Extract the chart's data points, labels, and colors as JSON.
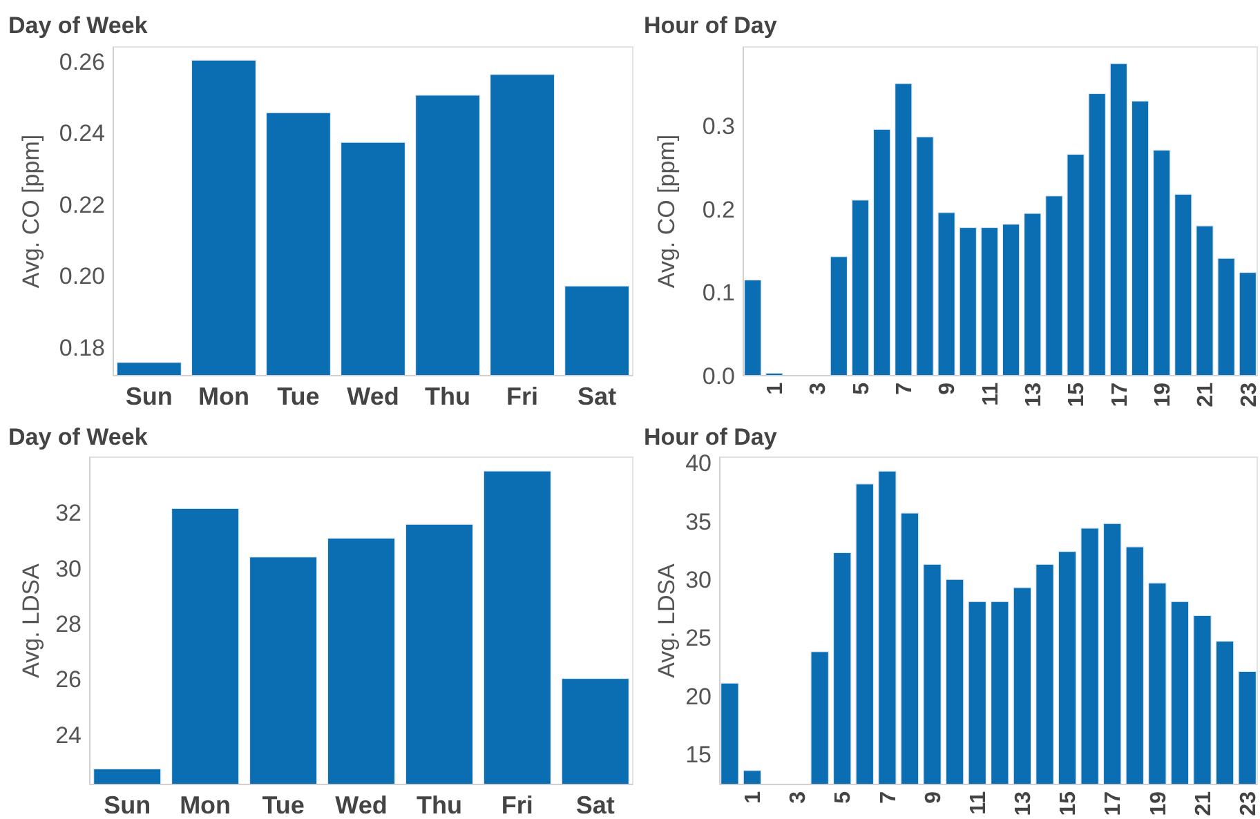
{
  "chart_data": [
    {
      "type": "bar",
      "title": "Day of Week",
      "ylabel": "Avg. CO [ppm]",
      "categories": [
        "Sun",
        "Mon",
        "Tue",
        "Wed",
        "Thu",
        "Fri",
        "Sat"
      ],
      "color": "#0b6db2",
      "values": [
        0.1757,
        0.2603,
        0.2456,
        0.2373,
        0.2505,
        0.2563,
        0.1971
      ],
      "ylim": [
        0.172,
        0.264
      ],
      "yticks": [
        {
          "value": 0.18,
          "label": "0.18"
        },
        {
          "value": 0.2,
          "label": "0.20"
        },
        {
          "value": 0.22,
          "label": "0.22"
        },
        {
          "value": 0.24,
          "label": "0.24"
        },
        {
          "value": 0.26,
          "label": "0.26"
        }
      ],
      "grid": false
    },
    {
      "type": "bar",
      "title": "Hour of Day",
      "ylabel": "Avg. CO [ppm]",
      "categories": [
        null,
        "1",
        null,
        "3",
        null,
        "5",
        null,
        "7",
        null,
        "9",
        null,
        "11",
        null,
        "13",
        null,
        "15",
        null,
        "17",
        null,
        "19",
        null,
        "21",
        null,
        "23"
      ],
      "color": "#0b6db2",
      "values": [
        0.115,
        0.003,
        null,
        null,
        0.143,
        0.211,
        0.296,
        0.351,
        0.287,
        0.196,
        0.178,
        0.178,
        0.182,
        0.195,
        0.216,
        0.266,
        0.339,
        0.375,
        0.33,
        0.271,
        0.218,
        0.18,
        0.141,
        0.124
      ],
      "ylim": [
        0,
        0.395
      ],
      "yticks": [
        {
          "value": 0,
          "label": "0.0"
        },
        {
          "value": 0.1,
          "label": "0.1"
        },
        {
          "value": 0.2,
          "label": "0.2"
        },
        {
          "value": 0.3,
          "label": "0.3"
        }
      ],
      "grid": false
    },
    {
      "type": "bar",
      "title": "Day of Week",
      "ylabel": "Avg. LDSA",
      "categories": [
        "Sun",
        "Mon",
        "Tue",
        "Wed",
        "Thu",
        "Fri",
        "Sat"
      ],
      "color": "#0b6db2",
      "values": [
        22.76,
        32.15,
        30.4,
        31.08,
        31.58,
        33.5,
        26.02
      ],
      "ylim": [
        22.2,
        34.0
      ],
      "yticks": [
        24,
        26,
        28,
        30,
        32
      ],
      "grid": false
    },
    {
      "type": "bar",
      "title": "Hour of Day",
      "ylabel": "Avg. LDSA",
      "categories": [
        null,
        "1",
        null,
        "3",
        null,
        "5",
        null,
        "7",
        null,
        "9",
        null,
        "11",
        null,
        "13",
        null,
        "15",
        null,
        "17",
        null,
        "19",
        null,
        "21",
        null,
        "23"
      ],
      "color": "#0b6db2",
      "values": [
        21.1,
        13.6,
        null,
        null,
        23.8,
        32.3,
        38.2,
        39.3,
        35.7,
        31.3,
        30.0,
        28.1,
        28.1,
        29.3,
        31.3,
        32.4,
        34.4,
        34.8,
        32.8,
        29.7,
        28.1,
        26.9,
        24.7,
        22.1
      ],
      "ylim": [
        12.4,
        40.5
      ],
      "yticks": [
        15,
        20,
        25,
        30,
        35,
        40
      ],
      "grid": false
    }
  ]
}
